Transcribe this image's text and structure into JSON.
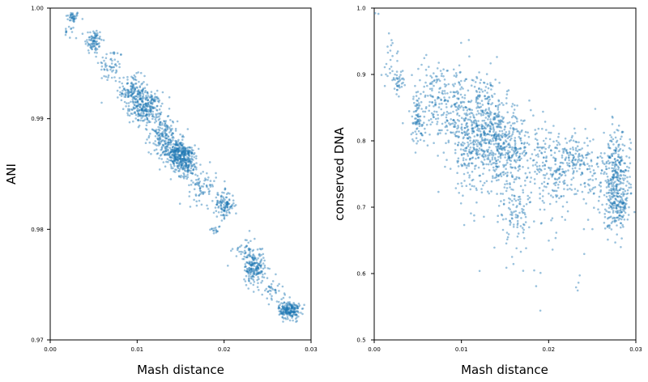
{
  "chart_data": [
    {
      "type": "scatter",
      "title": "",
      "xlabel": "Mash distance",
      "ylabel": "ANI",
      "xlim": [
        0.0,
        0.03
      ],
      "ylim": [
        0.97,
        1.0
      ],
      "xticks": [
        "0.00",
        "0.01",
        "0.02",
        "0.03"
      ],
      "yticks": [
        "0.97",
        "0.98",
        "0.99",
        "1.00"
      ],
      "color": "#1f77b4",
      "clusters": [
        {
          "x": 0.0026,
          "y": 0.9992,
          "sx": 0.0004,
          "sy": 0.00025,
          "n": 40
        },
        {
          "x": 0.0022,
          "y": 0.9978,
          "sx": 0.0003,
          "sy": 0.0003,
          "n": 12
        },
        {
          "x": 0.005,
          "y": 0.997,
          "sx": 0.0005,
          "sy": 0.0006,
          "n": 90
        },
        {
          "x": 0.007,
          "y": 0.9948,
          "sx": 0.0007,
          "sy": 0.0008,
          "n": 60
        },
        {
          "x": 0.0095,
          "y": 0.9925,
          "sx": 0.0007,
          "sy": 0.0007,
          "n": 150
        },
        {
          "x": 0.011,
          "y": 0.991,
          "sx": 0.0009,
          "sy": 0.0007,
          "n": 260
        },
        {
          "x": 0.013,
          "y": 0.9885,
          "sx": 0.0008,
          "sy": 0.0008,
          "n": 160
        },
        {
          "x": 0.0145,
          "y": 0.987,
          "sx": 0.0008,
          "sy": 0.0006,
          "n": 240
        },
        {
          "x": 0.0155,
          "y": 0.9862,
          "sx": 0.0008,
          "sy": 0.0007,
          "n": 230
        },
        {
          "x": 0.0175,
          "y": 0.984,
          "sx": 0.0008,
          "sy": 0.0008,
          "n": 80
        },
        {
          "x": 0.02,
          "y": 0.9822,
          "sx": 0.0006,
          "sy": 0.0006,
          "n": 120
        },
        {
          "x": 0.019,
          "y": 0.98,
          "sx": 0.0003,
          "sy": 0.0002,
          "n": 15
        },
        {
          "x": 0.0225,
          "y": 0.978,
          "sx": 0.0007,
          "sy": 0.0007,
          "n": 50
        },
        {
          "x": 0.0235,
          "y": 0.9765,
          "sx": 0.0006,
          "sy": 0.0007,
          "n": 180
        },
        {
          "x": 0.0255,
          "y": 0.9745,
          "sx": 0.0007,
          "sy": 0.0006,
          "n": 40
        },
        {
          "x": 0.0275,
          "y": 0.9727,
          "sx": 0.0006,
          "sy": 0.0004,
          "n": 220
        }
      ]
    },
    {
      "type": "scatter",
      "title": "",
      "xlabel": "Mash distance",
      "ylabel": "conserved DNA",
      "xlim": [
        0.0,
        0.03
      ],
      "ylim": [
        0.5,
        1.0
      ],
      "xticks": [
        "0.00",
        "0.01",
        "0.02",
        "0.03"
      ],
      "yticks": [
        "0.5",
        "0.6",
        "0.7",
        "0.8",
        "0.9",
        "1.0"
      ],
      "color": "#1f77b4",
      "clusters": [
        {
          "x": 0.0003,
          "y": 0.99,
          "sx": 0.0002,
          "sy": 0.004,
          "n": 3
        },
        {
          "x": 0.002,
          "y": 0.92,
          "sx": 0.0005,
          "sy": 0.025,
          "n": 25
        },
        {
          "x": 0.0028,
          "y": 0.89,
          "sx": 0.0003,
          "sy": 0.008,
          "n": 35
        },
        {
          "x": 0.005,
          "y": 0.83,
          "sx": 0.0004,
          "sy": 0.018,
          "n": 70
        },
        {
          "x": 0.0065,
          "y": 0.87,
          "sx": 0.0012,
          "sy": 0.025,
          "n": 90
        },
        {
          "x": 0.009,
          "y": 0.85,
          "sx": 0.0014,
          "sy": 0.035,
          "n": 180
        },
        {
          "x": 0.011,
          "y": 0.8,
          "sx": 0.0012,
          "sy": 0.045,
          "n": 220
        },
        {
          "x": 0.013,
          "y": 0.84,
          "sx": 0.0012,
          "sy": 0.03,
          "n": 160
        },
        {
          "x": 0.0145,
          "y": 0.79,
          "sx": 0.0018,
          "sy": 0.025,
          "n": 420
        },
        {
          "x": 0.016,
          "y": 0.69,
          "sx": 0.0008,
          "sy": 0.02,
          "n": 60
        },
        {
          "x": 0.017,
          "y": 0.72,
          "sx": 0.002,
          "sy": 0.05,
          "n": 120
        },
        {
          "x": 0.0195,
          "y": 0.77,
          "sx": 0.001,
          "sy": 0.03,
          "n": 90
        },
        {
          "x": 0.021,
          "y": 0.75,
          "sx": 0.0008,
          "sy": 0.02,
          "n": 60
        },
        {
          "x": 0.023,
          "y": 0.77,
          "sx": 0.001,
          "sy": 0.02,
          "n": 130
        },
        {
          "x": 0.0232,
          "y": 0.59,
          "sx": 0.0003,
          "sy": 0.01,
          "n": 4
        },
        {
          "x": 0.0255,
          "y": 0.74,
          "sx": 0.001,
          "sy": 0.04,
          "n": 80
        },
        {
          "x": 0.0278,
          "y": 0.74,
          "sx": 0.0008,
          "sy": 0.035,
          "n": 320
        },
        {
          "x": 0.028,
          "y": 0.7,
          "sx": 0.0006,
          "sy": 0.015,
          "n": 90
        }
      ]
    }
  ]
}
